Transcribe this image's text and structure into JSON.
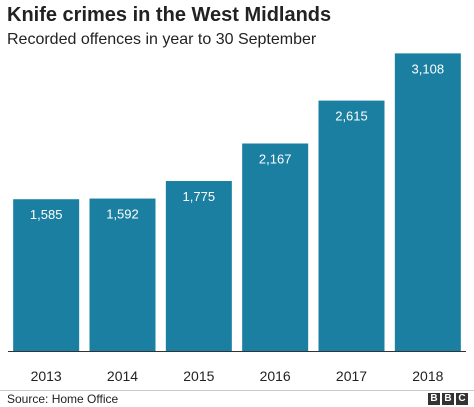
{
  "chart_data": {
    "type": "bar",
    "title": "Knife crimes in the West Midlands",
    "subtitle": "Recorded offences in year to 30 September",
    "categories": [
      "2013",
      "2014",
      "2015",
      "2016",
      "2017",
      "2018"
    ],
    "values": [
      1585,
      1592,
      1775,
      2167,
      2615,
      3108
    ],
    "value_labels": [
      "1,585",
      "1,592",
      "1,775",
      "2,167",
      "2,615",
      "3,108"
    ],
    "xlabel": "",
    "ylabel": "",
    "ylim": [
      0,
      3300
    ],
    "grid": false,
    "bar_color": "#1a7fa0",
    "label_color": "#ffffff"
  },
  "footer": {
    "source": "Source: Home Office",
    "logo_letters": [
      "B",
      "B",
      "C"
    ]
  }
}
